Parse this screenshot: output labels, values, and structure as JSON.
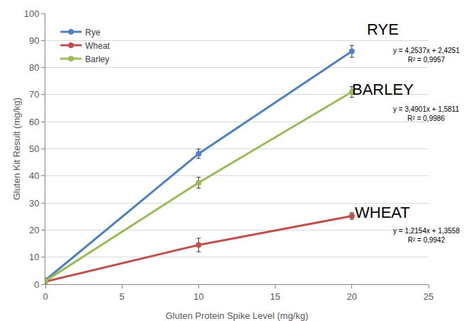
{
  "chart_data": {
    "type": "scatter",
    "x_label": "Gluten Protein Spike Level (mg/kg)",
    "y_label": "Gluten Kit Result (mg/kg)",
    "x": [
      0,
      10,
      20
    ],
    "series": [
      {
        "name": "Rye",
        "color": "#4f81bd",
        "values": [
          1.5,
          48.2,
          86.0
        ],
        "errors": [
          0,
          1.7,
          2.2
        ]
      },
      {
        "name": "Wheat",
        "color": "#c0504d",
        "values": [
          1.0,
          14.5,
          25.2
        ],
        "errors": [
          0,
          2.5,
          1.2
        ]
      },
      {
        "name": "Barley",
        "color": "#9bbb59",
        "values": [
          1.2,
          37.5,
          71.0
        ],
        "errors": [
          0,
          2.0,
          2.0
        ]
      }
    ],
    "annotations": [
      {
        "label": "RYE",
        "equation": "y = 4,2537x + 2,4251",
        "r2_label": "R² = 0,9957"
      },
      {
        "label": "BARLEY",
        "equation": "y = 3,4901x + 1,5811",
        "r2_label": "R² = 0,9986"
      },
      {
        "label": "WHEAT",
        "equation": "y = 1,2154x + 1,3558",
        "r2_label": "R² = 0,9942"
      }
    ],
    "xlim": [
      0,
      25
    ],
    "xticks": [
      0,
      5,
      10,
      15,
      20,
      25
    ],
    "ylim": [
      0,
      100
    ],
    "yticks": [
      0,
      10,
      20,
      30,
      40,
      50,
      60,
      70,
      80,
      90,
      100
    ],
    "grid": true,
    "legend": "upper left",
    "marker": "circle",
    "line_style": "solid"
  }
}
